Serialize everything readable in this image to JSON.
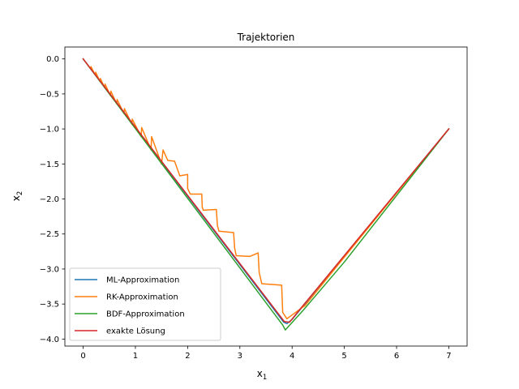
{
  "chart_data": {
    "type": "line",
    "title": "Trajektorien",
    "xlabel": "x",
    "xlabel_sub": "1",
    "ylabel": "x",
    "ylabel_sub": "2",
    "xlim": [
      -0.35,
      7.35
    ],
    "ylim": [
      -4.1,
      0.17
    ],
    "xticks": [
      0,
      1,
      2,
      3,
      4,
      5,
      6,
      7
    ],
    "xtick_labels": [
      "0",
      "1",
      "2",
      "3",
      "4",
      "5",
      "6",
      "7"
    ],
    "yticks": [
      0.0,
      -0.5,
      -1.0,
      -1.5,
      -2.0,
      -2.5,
      -3.0,
      -3.5,
      -4.0
    ],
    "ytick_labels": [
      "0.0",
      "−0.5",
      "−1.0",
      "−1.5",
      "−2.0",
      "−2.5",
      "−3.0",
      "−3.5",
      "−4.0"
    ],
    "grid": false,
    "legend_position": "lower-left",
    "series": [
      {
        "name": "ML-Approximation",
        "color": "#1f77b4",
        "points": [
          [
            0,
            0
          ],
          [
            3.84,
            -3.76
          ],
          [
            3.9,
            -3.78
          ],
          [
            4.0,
            -3.72
          ],
          [
            7,
            -1
          ]
        ]
      },
      {
        "name": "RK-Approximation",
        "color": "#ff7f0e",
        "points": [
          [
            0,
            0
          ],
          [
            0.14,
            -0.14
          ],
          [
            0.15,
            -0.11
          ],
          [
            0.23,
            -0.23
          ],
          [
            0.24,
            -0.19
          ],
          [
            0.32,
            -0.32
          ],
          [
            0.33,
            -0.28
          ],
          [
            0.41,
            -0.41
          ],
          [
            0.42,
            -0.36
          ],
          [
            0.52,
            -0.52
          ],
          [
            0.53,
            -0.46
          ],
          [
            0.64,
            -0.64
          ],
          [
            0.65,
            -0.58
          ],
          [
            0.78,
            -0.78
          ],
          [
            0.79,
            -0.71
          ],
          [
            0.93,
            -0.93
          ],
          [
            0.94,
            -0.86
          ],
          [
            1.11,
            -1.11
          ],
          [
            1.12,
            -0.98
          ],
          [
            1.3,
            -1.3
          ],
          [
            1.31,
            -1.11
          ],
          [
            1.5,
            -1.5
          ],
          [
            1.53,
            -1.3
          ],
          [
            1.62,
            -1.45
          ],
          [
            1.75,
            -1.46
          ],
          [
            1.85,
            -1.67
          ],
          [
            2.0,
            -1.65
          ],
          [
            2.0,
            -1.85
          ],
          [
            2.05,
            -1.93
          ],
          [
            2.27,
            -1.93
          ],
          [
            2.28,
            -2.12
          ],
          [
            2.3,
            -2.16
          ],
          [
            2.55,
            -2.15
          ],
          [
            2.57,
            -2.38
          ],
          [
            2.6,
            -2.46
          ],
          [
            2.88,
            -2.48
          ],
          [
            2.9,
            -2.7
          ],
          [
            2.93,
            -2.81
          ],
          [
            3.19,
            -2.82
          ],
          [
            3.35,
            -2.77
          ],
          [
            3.37,
            -3.05
          ],
          [
            3.42,
            -3.21
          ],
          [
            3.8,
            -3.23
          ],
          [
            3.82,
            -3.62
          ],
          [
            3.9,
            -3.71
          ],
          [
            4.25,
            -3.52
          ],
          [
            5,
            -2.83
          ],
          [
            7,
            -1
          ]
        ]
      },
      {
        "name": "BDF-Approximation",
        "color": "#2ca02c",
        "points": [
          [
            0,
            0
          ],
          [
            3.82,
            -3.8
          ],
          [
            3.87,
            -3.87
          ],
          [
            4.2,
            -3.6
          ],
          [
            5,
            -2.9
          ],
          [
            7,
            -1
          ]
        ]
      },
      {
        "name": "exakte Lösung",
        "color": "#d62728",
        "points": [
          [
            0,
            0
          ],
          [
            3.85,
            -3.75
          ],
          [
            3.95,
            -3.76
          ],
          [
            4.2,
            -3.53
          ],
          [
            7,
            -1
          ]
        ]
      }
    ]
  }
}
